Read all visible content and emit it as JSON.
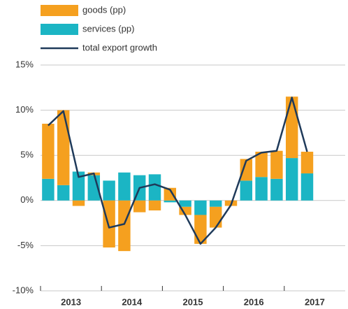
{
  "chart_data": {
    "type": "stacked_bar_line",
    "x_groups": [
      "2013",
      "2014",
      "2015",
      "2016",
      "2017"
    ],
    "categories": [
      null,
      null,
      null,
      null,
      null,
      null,
      null,
      null,
      null,
      null,
      null,
      null,
      null,
      null,
      null,
      null,
      null,
      null
    ],
    "series": [
      {
        "name": "services (pp)",
        "color": "#1bb5c4",
        "kind": "bar",
        "values": [
          2.4,
          1.7,
          3.2,
          2.8,
          2.2,
          3.1,
          2.8,
          2.9,
          -0.2,
          -0.7,
          -1.6,
          -0.7,
          0,
          2.2,
          2.6,
          2.4,
          4.7,
          3.0
        ]
      },
      {
        "name": "goods (pp)",
        "color": "#f5a01f",
        "kind": "bar",
        "values": [
          6.1,
          8.3,
          -0.6,
          0.3,
          -5.2,
          -5.6,
          -1.3,
          -1.1,
          1.4,
          -0.9,
          -3.2,
          -2.3,
          -0.6,
          2.4,
          2.8,
          3.1,
          6.8,
          2.4
        ]
      },
      {
        "name": "total export growth",
        "color": "#1f3a5a",
        "kind": "line",
        "values": [
          8.3,
          9.9,
          2.6,
          3.0,
          -3.0,
          -2.6,
          1.4,
          1.8,
          1.2,
          -1.6,
          -4.8,
          -3.0,
          -0.5,
          4.4,
          5.3,
          5.5,
          11.4,
          5.4
        ]
      }
    ],
    "legend_order": [
      1,
      0,
      2
    ],
    "ylim": [
      -10,
      15
    ],
    "yticks": [
      {
        "value": -10,
        "label": "-10%"
      },
      {
        "value": -5,
        "label": "-5%"
      },
      {
        "value": 0,
        "label": "0%"
      },
      {
        "value": 5,
        "label": "5%"
      },
      {
        "value": 10,
        "label": "10%"
      },
      {
        "value": 15,
        "label": "15%"
      }
    ],
    "grid": true
  }
}
